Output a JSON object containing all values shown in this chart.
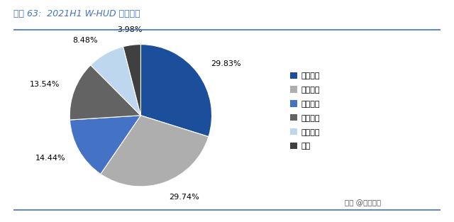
{
  "title": "图表 63:  2021H1 W-HUD 全球份额",
  "labels": [
    "日本精机",
    "日本电装",
    "华阳集团",
    "台湾怡利",
    "大陆集团",
    "其他"
  ],
  "values": [
    29.83,
    29.74,
    14.44,
    13.54,
    8.48,
    3.98
  ],
  "colors": [
    "#1B4F9C",
    "#AEAEAE",
    "#4472C4",
    "#636363",
    "#BDD7EE",
    "#404040"
  ],
  "pct_labels": [
    "29.83%",
    "29.74%",
    "14.44%",
    "13.54%",
    "8.48%",
    "3.98%"
  ],
  "background_color": "#FFFFFF",
  "title_color": "#4472C4",
  "title_fontsize": 9,
  "legend_fontsize": 8,
  "pct_fontsize": 8,
  "watermark": "头条 @未来智库",
  "line_color": "#4472C4",
  "startangle": 90
}
